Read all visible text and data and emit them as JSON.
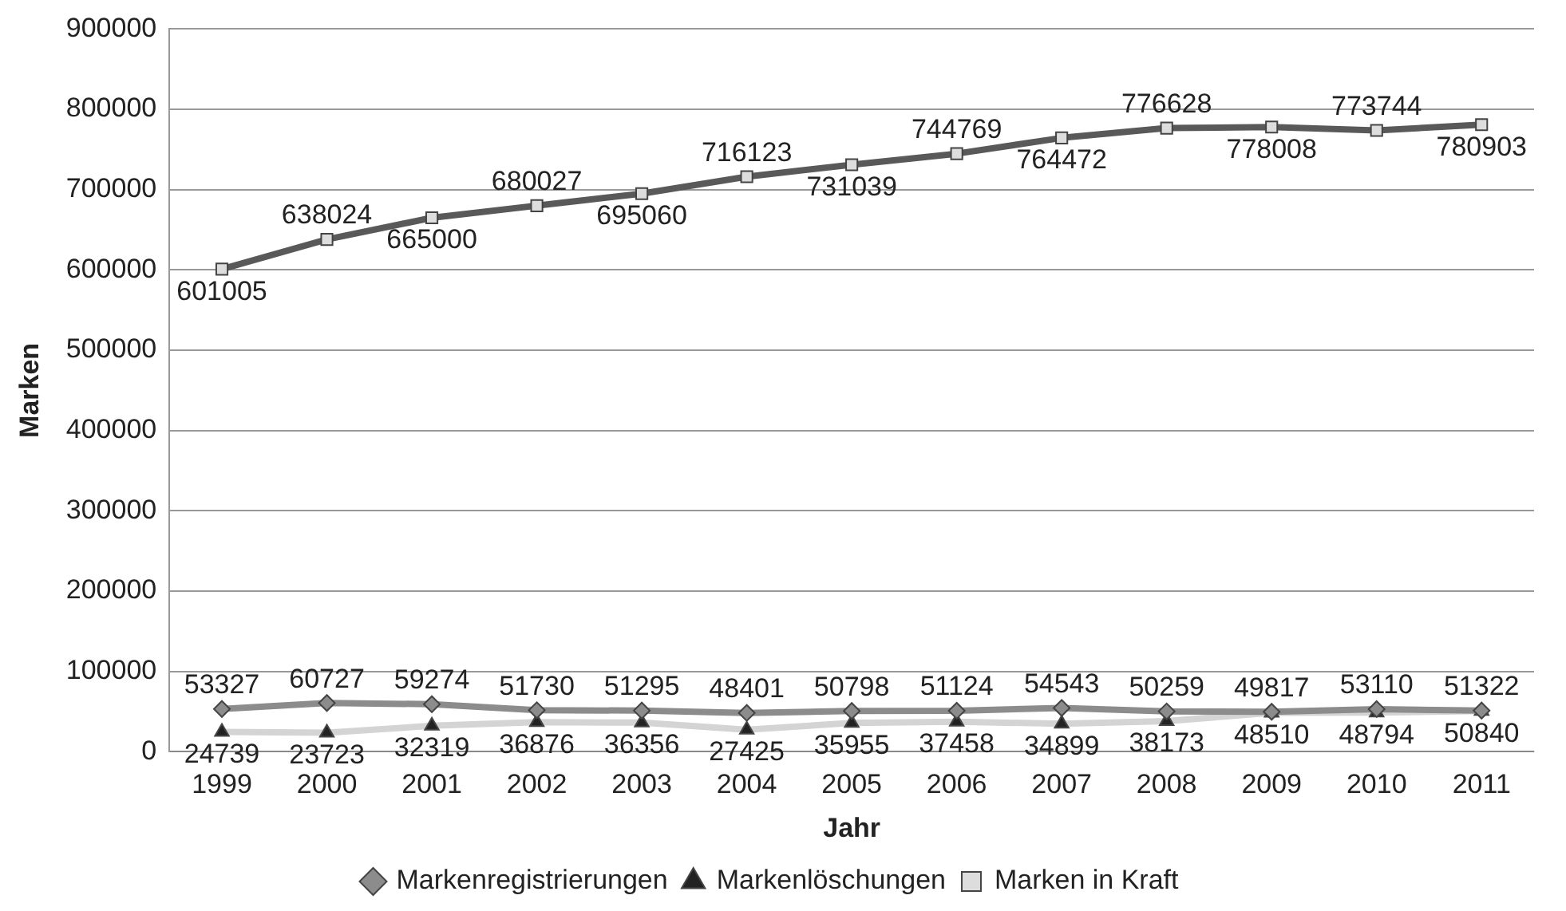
{
  "chart_data": {
    "type": "line",
    "xlabel": "Jahr",
    "ylabel": "Marken",
    "categories": [
      "1999",
      "2000",
      "2001",
      "2002",
      "2003",
      "2004",
      "2005",
      "2006",
      "2007",
      "2008",
      "2009",
      "2010",
      "2011"
    ],
    "series": [
      {
        "name": "Markenregistrierungen",
        "color": "#8c8c8c",
        "marker": "diamond",
        "values": [
          53327,
          60727,
          59274,
          51730,
          51295,
          48401,
          50798,
          51124,
          54543,
          50259,
          49817,
          53110,
          51322
        ]
      },
      {
        "name": "Markenlöschungen",
        "color": "#d4d4d4",
        "marker": "triangle",
        "values": [
          24739,
          23723,
          32319,
          36876,
          36356,
          27425,
          35955,
          37458,
          34899,
          38173,
          48510,
          48794,
          50840
        ]
      },
      {
        "name": "Marken in Kraft",
        "color": "#595959",
        "marker": "square",
        "values": [
          601005,
          638024,
          665000,
          680027,
          695060,
          716123,
          731039,
          744769,
          764472,
          776628,
          778008,
          773744,
          780903
        ]
      }
    ],
    "ylim": [
      0,
      900000
    ],
    "yticks": [
      0,
      100000,
      200000,
      300000,
      400000,
      500000,
      600000,
      700000,
      800000,
      900000
    ],
    "grid": "y",
    "legend": "bottom",
    "data_labels": true
  }
}
